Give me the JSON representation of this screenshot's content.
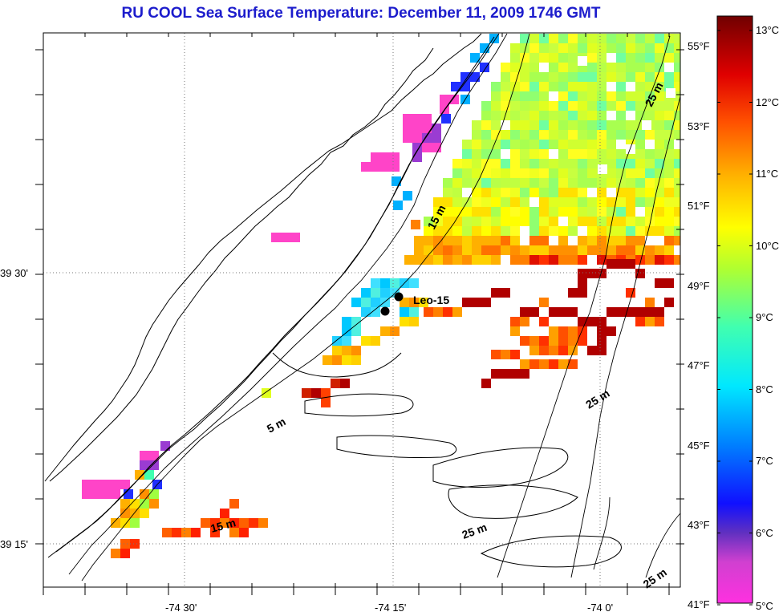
{
  "title": "RU COOL  Sea Surface Temperature:  December 11, 2009 1746 GMT",
  "axes": {
    "lat_labels": [
      "39 30'",
      "39 15'"
    ],
    "lon_labels": [
      "-74 30'",
      "-74 15'",
      "-74 0'"
    ]
  },
  "station": {
    "label": "Leo-15"
  },
  "contours": [
    "5 m",
    "15 m",
    "15 m",
    "25 m",
    "25 m",
    "25 m",
    "25 m"
  ],
  "colorbar": {
    "celsius": [
      "13°C",
      "12°C",
      "11°C",
      "10°C",
      "9°C",
      "8°C",
      "7°C",
      "6°C",
      "5°C"
    ],
    "fahrenheit": [
      "55°F",
      "53°F",
      "51°F",
      "49°F",
      "47°F",
      "45°F",
      "43°F",
      "41°F"
    ],
    "colors": [
      "#ff40d0",
      "#ff40b0",
      "#9a40d0",
      "#2020ff",
      "#0090ff",
      "#00e0ff",
      "#40ffb0",
      "#a0ff40",
      "#ffff00",
      "#ffc000",
      "#ff8000",
      "#ff3000",
      "#d00000",
      "#800000"
    ]
  },
  "palette": {
    "title_color": "#1c1ccc"
  }
}
